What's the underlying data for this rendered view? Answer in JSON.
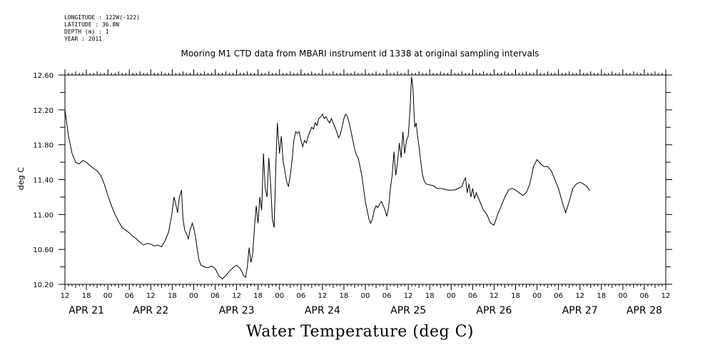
{
  "header": {
    "longitude": "LONGITUDE : 122W(-122)",
    "latitude": "LATITUDE : 36.8N",
    "depth": "DEPTH (m) : 1",
    "year": "YEAR : 2011"
  },
  "chart_data": {
    "type": "line",
    "title": "Mooring M1 CTD data from MBARI instrument id 1338 at original sampling intervals",
    "xlabel": "Water Temperature (deg C)",
    "ylabel": "deg C",
    "ylim": [
      10.2,
      12.6
    ],
    "yticks": [
      "10.20",
      "10.60",
      "11.00",
      "11.40",
      "11.80",
      "12.20",
      "12.60"
    ],
    "xlim_hours": [
      0,
      168
    ],
    "xtick_labels": [
      "12",
      "18",
      "00",
      "06",
      "12",
      "18",
      "00",
      "06",
      "12",
      "18",
      "00",
      "06",
      "12",
      "18",
      "00",
      "06",
      "12",
      "18",
      "00",
      "06",
      "12",
      "18",
      "00",
      "06",
      "12",
      "18",
      "00",
      "06",
      "12"
    ],
    "day_labels": [
      {
        "label": "APR 21",
        "hour": 6
      },
      {
        "label": "APR 22",
        "hour": 24
      },
      {
        "label": "APR 23",
        "hour": 48
      },
      {
        "label": "APR 24",
        "hour": 72
      },
      {
        "label": "APR 25",
        "hour": 96
      },
      {
        "label": "APR 26",
        "hour": 120
      },
      {
        "label": "APR 27",
        "hour": 144
      },
      {
        "label": "APR 28",
        "hour": 162
      }
    ],
    "series": [
      {
        "values": [
          [
            0,
            12.2
          ],
          [
            0.5,
            12.05
          ],
          [
            1,
            11.9
          ],
          [
            2,
            11.7
          ],
          [
            3,
            11.6
          ],
          [
            4,
            11.58
          ],
          [
            5,
            11.62
          ],
          [
            6,
            11.6
          ],
          [
            7,
            11.56
          ],
          [
            8,
            11.53
          ],
          [
            9,
            11.5
          ],
          [
            10,
            11.45
          ],
          [
            11,
            11.35
          ],
          [
            12,
            11.22
          ],
          [
            13,
            11.1
          ],
          [
            14,
            11.0
          ],
          [
            15,
            10.92
          ],
          [
            16,
            10.85
          ],
          [
            17,
            10.82
          ],
          [
            18,
            10.79
          ],
          [
            19,
            10.75
          ],
          [
            20,
            10.72
          ],
          [
            21,
            10.68
          ],
          [
            22,
            10.65
          ],
          [
            23,
            10.67
          ],
          [
            24,
            10.66
          ],
          [
            25,
            10.64
          ],
          [
            26,
            10.65
          ],
          [
            27,
            10.63
          ],
          [
            28,
            10.7
          ],
          [
            29,
            10.8
          ],
          [
            29.8,
            10.98
          ],
          [
            30.5,
            11.2
          ],
          [
            31,
            11.12
          ],
          [
            31.5,
            11.02
          ],
          [
            32,
            11.2
          ],
          [
            32.6,
            11.28
          ],
          [
            33,
            10.95
          ],
          [
            33.5,
            10.82
          ],
          [
            34,
            10.78
          ],
          [
            34.5,
            10.72
          ],
          [
            35,
            10.82
          ],
          [
            35.6,
            10.9
          ],
          [
            36,
            10.85
          ],
          [
            36.5,
            10.75
          ],
          [
            37,
            10.6
          ],
          [
            37.5,
            10.48
          ],
          [
            38,
            10.42
          ],
          [
            39,
            10.4
          ],
          [
            40,
            10.39
          ],
          [
            41,
            10.41
          ],
          [
            42,
            10.38
          ],
          [
            43,
            10.3
          ],
          [
            44,
            10.26
          ],
          [
            45,
            10.3
          ],
          [
            46,
            10.35
          ],
          [
            47,
            10.39
          ],
          [
            48,
            10.42
          ],
          [
            49,
            10.38
          ],
          [
            50,
            10.3
          ],
          [
            50.5,
            10.28
          ],
          [
            51,
            10.4
          ],
          [
            51.5,
            10.62
          ],
          [
            52,
            10.45
          ],
          [
            52.5,
            10.55
          ],
          [
            53,
            10.85
          ],
          [
            53.5,
            11.1
          ],
          [
            54,
            10.9
          ],
          [
            54.5,
            11.2
          ],
          [
            55,
            11.05
          ],
          [
            55.5,
            11.7
          ],
          [
            56,
            11.3
          ],
          [
            56.5,
            11.2
          ],
          [
            57,
            11.65
          ],
          [
            57.5,
            11.35
          ],
          [
            58,
            10.95
          ],
          [
            58.5,
            10.85
          ],
          [
            59,
            11.6
          ],
          [
            59.4,
            12.05
          ],
          [
            60,
            11.7
          ],
          [
            60.5,
            11.9
          ],
          [
            61,
            11.62
          ],
          [
            61.5,
            11.5
          ],
          [
            62,
            11.38
          ],
          [
            62.5,
            11.32
          ],
          [
            63,
            11.45
          ],
          [
            63.5,
            11.62
          ],
          [
            64,
            11.85
          ],
          [
            64.5,
            11.95
          ],
          [
            65,
            11.93
          ],
          [
            65.5,
            11.95
          ],
          [
            66,
            11.85
          ],
          [
            66.5,
            11.78
          ],
          [
            67,
            11.85
          ],
          [
            67.5,
            11.82
          ],
          [
            68,
            11.9
          ],
          [
            68.5,
            11.95
          ],
          [
            69,
            12.0
          ],
          [
            69.5,
            11.98
          ],
          [
            70,
            12.05
          ],
          [
            70.5,
            12.02
          ],
          [
            71,
            12.1
          ],
          [
            71.5,
            12.12
          ],
          [
            72,
            12.15
          ],
          [
            72.5,
            12.1
          ],
          [
            73,
            12.12
          ],
          [
            73.5,
            12.08
          ],
          [
            74,
            12.05
          ],
          [
            74.5,
            12.1
          ],
          [
            75,
            12.05
          ],
          [
            75.5,
            12.0
          ],
          [
            76,
            11.95
          ],
          [
            76.5,
            11.88
          ],
          [
            77,
            11.92
          ],
          [
            77.5,
            12.0
          ],
          [
            78,
            12.1
          ],
          [
            78.5,
            12.15
          ],
          [
            79,
            12.12
          ],
          [
            79.5,
            12.05
          ],
          [
            80,
            11.95
          ],
          [
            80.5,
            11.85
          ],
          [
            81,
            11.75
          ],
          [
            81.5,
            11.68
          ],
          [
            82,
            11.65
          ],
          [
            82.5,
            11.55
          ],
          [
            83,
            11.45
          ],
          [
            83.5,
            11.3
          ],
          [
            84,
            11.15
          ],
          [
            84.5,
            11.05
          ],
          [
            85,
            10.95
          ],
          [
            85.5,
            10.9
          ],
          [
            86,
            10.95
          ],
          [
            86.5,
            11.05
          ],
          [
            87,
            11.1
          ],
          [
            87.5,
            11.08
          ],
          [
            88,
            11.12
          ],
          [
            88.5,
            11.15
          ],
          [
            89,
            11.1
          ],
          [
            89.5,
            11.05
          ],
          [
            90,
            10.98
          ],
          [
            90.5,
            11.08
          ],
          [
            91,
            11.3
          ],
          [
            91.5,
            11.45
          ],
          [
            92,
            11.72
          ],
          [
            92.5,
            11.45
          ],
          [
            93,
            11.6
          ],
          [
            93.5,
            11.82
          ],
          [
            94,
            11.65
          ],
          [
            94.5,
            11.95
          ],
          [
            95,
            11.7
          ],
          [
            95.5,
            11.85
          ],
          [
            96,
            11.9
          ],
          [
            96.5,
            12.2
          ],
          [
            96.9,
            12.58
          ],
          [
            97.3,
            12.45
          ],
          [
            97.8,
            12.0
          ],
          [
            98.2,
            12.05
          ],
          [
            98.6,
            11.9
          ],
          [
            99,
            11.78
          ],
          [
            99.5,
            11.6
          ],
          [
            100,
            11.45
          ],
          [
            100.5,
            11.38
          ],
          [
            101,
            11.35
          ],
          [
            102,
            11.34
          ],
          [
            103,
            11.33
          ],
          [
            104,
            11.3
          ],
          [
            105,
            11.3
          ],
          [
            106,
            11.29
          ],
          [
            107,
            11.28
          ],
          [
            108,
            11.28
          ],
          [
            109,
            11.28
          ],
          [
            110,
            11.3
          ],
          [
            111,
            11.32
          ],
          [
            111.5,
            11.38
          ],
          [
            112,
            11.42
          ],
          [
            112.5,
            11.25
          ],
          [
            113,
            11.35
          ],
          [
            113.5,
            11.2
          ],
          [
            114,
            11.3
          ],
          [
            114.5,
            11.18
          ],
          [
            115,
            11.25
          ],
          [
            116,
            11.15
          ],
          [
            117,
            11.05
          ],
          [
            118,
            11.0
          ],
          [
            119,
            10.9
          ],
          [
            120,
            10.88
          ],
          [
            121,
            11.0
          ],
          [
            122,
            11.1
          ],
          [
            123,
            11.2
          ],
          [
            124,
            11.28
          ],
          [
            125,
            11.3
          ],
          [
            126,
            11.28
          ],
          [
            127,
            11.25
          ],
          [
            128,
            11.22
          ],
          [
            129,
            11.25
          ],
          [
            130,
            11.35
          ],
          [
            131,
            11.55
          ],
          [
            132,
            11.63
          ],
          [
            133,
            11.58
          ],
          [
            134,
            11.55
          ],
          [
            135,
            11.55
          ],
          [
            136,
            11.5
          ],
          [
            137,
            11.4
          ],
          [
            138,
            11.3
          ],
          [
            139,
            11.15
          ],
          [
            140,
            11.02
          ],
          [
            141,
            11.15
          ],
          [
            142,
            11.3
          ],
          [
            143,
            11.35
          ],
          [
            144,
            11.37
          ],
          [
            145,
            11.35
          ],
          [
            146,
            11.32
          ],
          [
            146.8,
            11.27
          ]
        ]
      }
    ]
  }
}
